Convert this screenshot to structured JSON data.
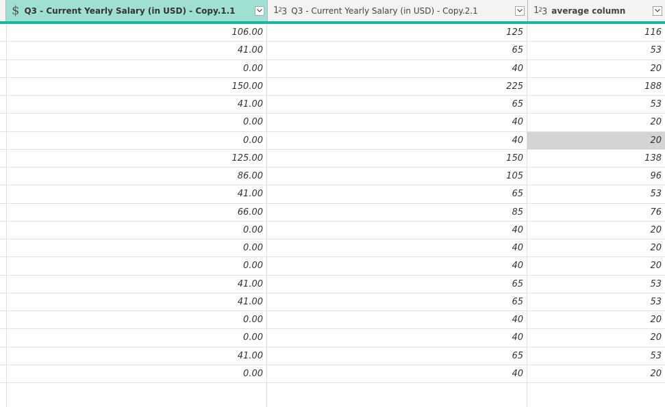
{
  "columns": [
    {
      "type": "currency",
      "label": "Q3 - Current Yearly Salary (in USD) - Copy.1.1",
      "selected": true
    },
    {
      "type": "number",
      "label": "Q3 - Current Yearly Salary (in USD) - Copy.2.1",
      "selected": false
    },
    {
      "type": "number",
      "label": "average column",
      "selected": false
    }
  ],
  "icons": {
    "currency": "$",
    "dropdown": "chevron-down-icon"
  },
  "colors": {
    "header_bg": "#f3f3f3",
    "selected_header_bg": "#9fe0d2",
    "accent": "#1bb7a5",
    "highlight_cell": "#d4d4d4"
  },
  "rows": [
    [
      "106.00",
      "125",
      "116"
    ],
    [
      "41.00",
      "65",
      "53"
    ],
    [
      "0.00",
      "40",
      "20"
    ],
    [
      "150.00",
      "225",
      "188"
    ],
    [
      "41.00",
      "65",
      "53"
    ],
    [
      "0.00",
      "40",
      "20"
    ],
    [
      "0.00",
      "40",
      "20"
    ],
    [
      "125.00",
      "150",
      "138"
    ],
    [
      "86.00",
      "105",
      "96"
    ],
    [
      "41.00",
      "65",
      "53"
    ],
    [
      "66.00",
      "85",
      "76"
    ],
    [
      "0.00",
      "40",
      "20"
    ],
    [
      "0.00",
      "40",
      "20"
    ],
    [
      "0.00",
      "40",
      "20"
    ],
    [
      "41.00",
      "65",
      "53"
    ],
    [
      "41.00",
      "65",
      "53"
    ],
    [
      "0.00",
      "40",
      "20"
    ],
    [
      "0.00",
      "40",
      "20"
    ],
    [
      "41.00",
      "65",
      "53"
    ],
    [
      "0.00",
      "40",
      "20"
    ]
  ],
  "highlighted_cell": {
    "row": 6,
    "col": 2
  }
}
